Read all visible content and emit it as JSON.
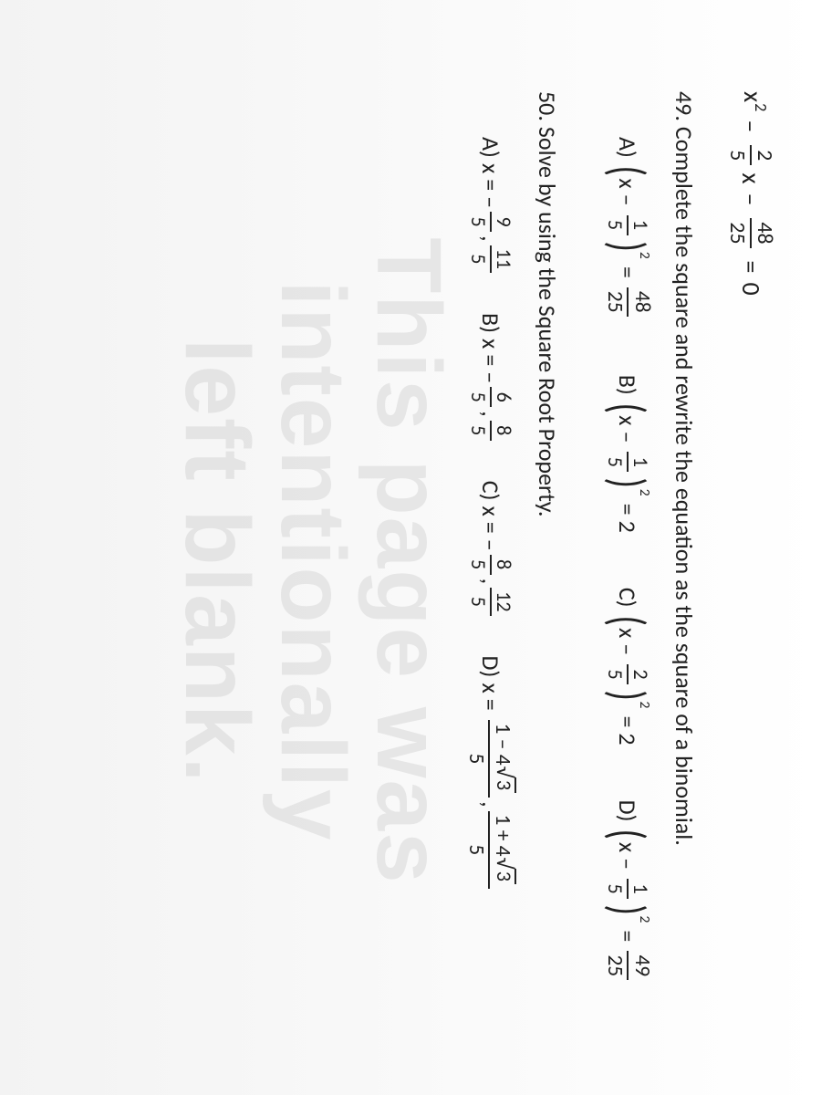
{
  "top_equation": {
    "x2": "x",
    "frac1_num": "2",
    "frac1_den": "5",
    "frac2_num": "48",
    "frac2_den": "25",
    "rhs": "0"
  },
  "q49": {
    "number": "49.",
    "text": "Complete the square and rewrite the equation as the square of a binomial.",
    "choices": {
      "A": {
        "label": "A)",
        "inner_frac_num": "1",
        "inner_frac_den": "5",
        "rhs_num": "48",
        "rhs_den": "25"
      },
      "B": {
        "label": "B)",
        "inner_frac_num": "1",
        "inner_frac_den": "5",
        "rhs": "2"
      },
      "C": {
        "label": "C)",
        "inner_frac_num": "2",
        "inner_frac_den": "5",
        "rhs": "2"
      },
      "D": {
        "label": "D)",
        "inner_frac_num": "1",
        "inner_frac_den": "5",
        "rhs_num": "49",
        "rhs_den": "25"
      }
    }
  },
  "q50": {
    "number": "50.",
    "text": "Solve by using the Square Root Property.",
    "choices": {
      "A": {
        "label": "A)",
        "v1_num": "9",
        "v1_den": "5",
        "v2_num": "11",
        "v2_den": "5",
        "neg1": true,
        "neg2": false
      },
      "B": {
        "label": "B)",
        "v1_num": "6",
        "v1_den": "5",
        "v2_num": "8",
        "v2_den": "5",
        "neg1": true,
        "neg2": false
      },
      "C": {
        "label": "C)",
        "v1_num": "8",
        "v1_den": "5",
        "v2_num": "12",
        "v2_den": "5",
        "neg1": true,
        "neg2": false
      },
      "D": {
        "label": "D)",
        "t1_top_left": "1 – 4",
        "t1_top_rad": "3",
        "t1_bot": "5",
        "t2_top_left": "1 + 4",
        "t2_top_rad": "3",
        "t2_bot": "5"
      }
    }
  },
  "watermark": {
    "line1": "This page was",
    "line2": "intentionally",
    "line3": "left blank."
  },
  "glyphs": {
    "x": "x",
    "minus": "–",
    "plus": "+",
    "equals": "="
  }
}
